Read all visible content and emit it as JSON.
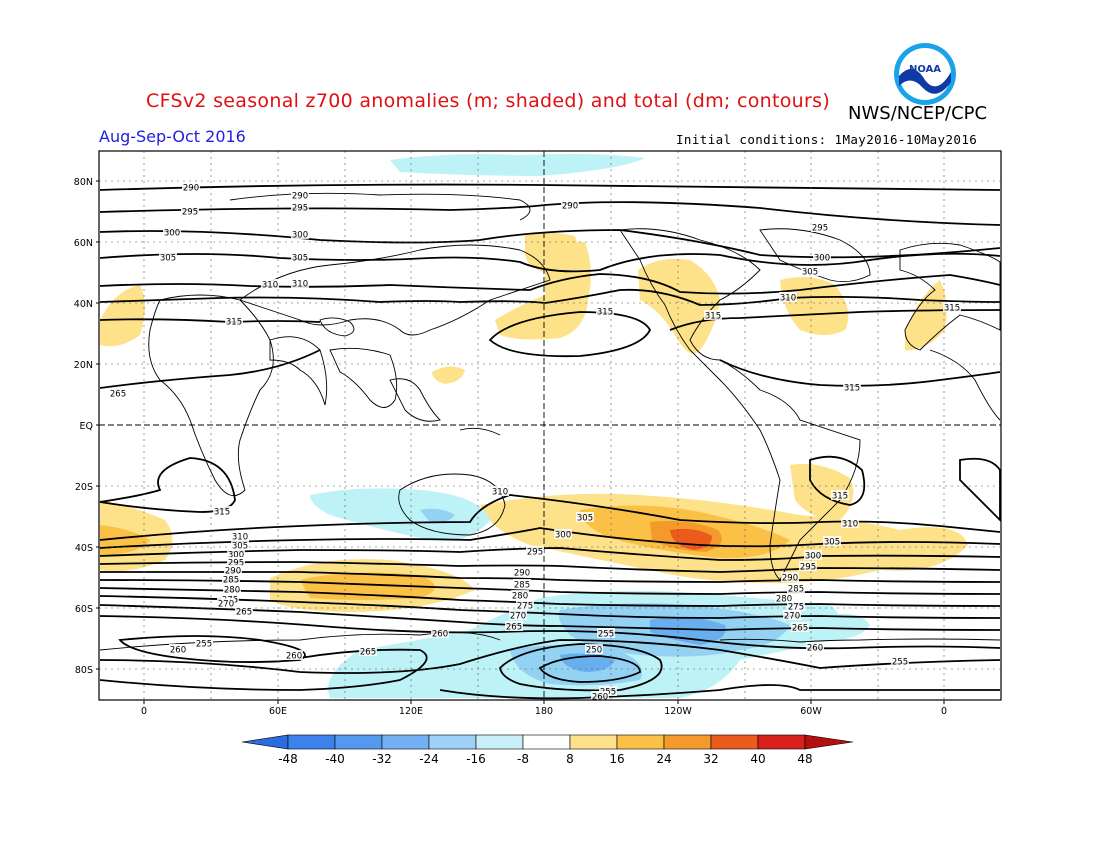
{
  "header": {
    "title": "CFSv2 seasonal z700 anomalies (m; shaded) and total (dm; contours)",
    "agency": "NWS/NCEP/CPC",
    "season": "Aug-Sep-Oct 2016",
    "initial_conditions": "Initial conditions: 1May2016-10May2016",
    "logo_text": "NOAA"
  },
  "map": {
    "projection": "cylindrical",
    "lat_labels": [
      "80N",
      "60N",
      "40N",
      "20N",
      "EQ",
      "20S",
      "40S",
      "60S",
      "80S"
    ],
    "lon_labels": [
      "0",
      "60E",
      "120E",
      "180",
      "120W",
      "60W",
      "0"
    ],
    "contour_labels": [
      "290",
      "295",
      "300",
      "305",
      "310",
      "315",
      "290",
      "295",
      "300",
      "305",
      "310",
      "315",
      "315",
      "315",
      "290",
      "295",
      "300",
      "305",
      "310",
      "315",
      "310",
      "305",
      "300",
      "295",
      "290",
      "285",
      "280",
      "275",
      "270",
      "265",
      "260",
      "255",
      "250",
      "255",
      "260",
      "265",
      "315",
      "310",
      "305",
      "300",
      "295",
      "290",
      "285",
      "280",
      "275",
      "270",
      "265",
      "260",
      "255",
      "315",
      "310",
      "305",
      "300",
      "295",
      "290",
      "285",
      "280",
      "275",
      "270",
      "265",
      "260",
      "255",
      "260",
      "265",
      "280",
      "255",
      "315",
      "310",
      "305",
      "300",
      "295",
      "290",
      "285",
      "280",
      "275",
      "270",
      "265",
      "260",
      "255",
      "255",
      "260"
    ],
    "colors": {
      "pos_8_16": "#fde28a",
      "pos_16_24": "#fbc147",
      "pos_24_32": "#f39a2b",
      "pos_32_40": "#ec5a1c",
      "neg_8_16": "#bdf2f6",
      "neg_16_24": "#94d2f4",
      "neg_24_32": "#69aff0",
      "neg_32_40": "#4a8ef0"
    }
  },
  "colorbar": {
    "labels": [
      "-48",
      "-40",
      "-32",
      "-24",
      "-16",
      "-8",
      "8",
      "16",
      "24",
      "32",
      "40",
      "48"
    ],
    "colors": [
      "#2a6de0",
      "#3c82ec",
      "#5598f0",
      "#74b1f4",
      "#9fd0f7",
      "#c8eef7",
      "#ffffff",
      "#fde28a",
      "#fbc147",
      "#f39a2b",
      "#ec5a1c",
      "#d8211a",
      "#b51010"
    ]
  }
}
